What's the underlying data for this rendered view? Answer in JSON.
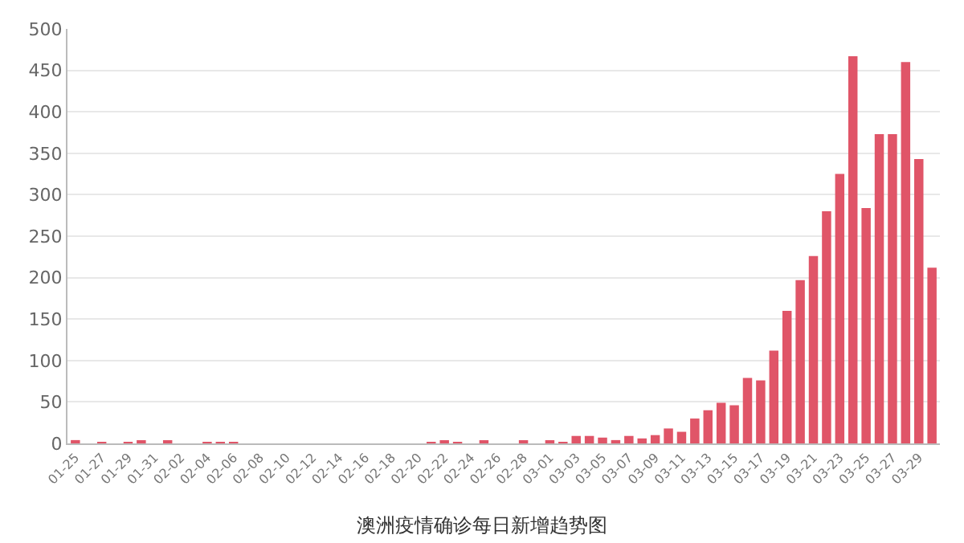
{
  "chart_data": {
    "type": "bar",
    "title": "澳洲疫情确诊每日新增趋势图",
    "categories": [
      "01-25",
      null,
      "01-27",
      null,
      "01-29",
      null,
      "01-31",
      null,
      "02-02",
      null,
      "02-04",
      null,
      "02-06",
      null,
      "02-08",
      null,
      "02-10",
      null,
      "02-12",
      null,
      "02-14",
      null,
      "02-16",
      null,
      "02-18",
      null,
      "02-20",
      null,
      "02-22",
      null,
      "02-24",
      null,
      "02-26",
      null,
      "02-28",
      null,
      "03-01",
      null,
      "03-03",
      null,
      "03-05",
      null,
      "03-07",
      null,
      "03-09",
      null,
      "03-11",
      null,
      "03-13",
      null,
      "03-15",
      null,
      "03-17",
      null,
      "03-19",
      null,
      "03-21",
      null,
      "03-23",
      null,
      "03-25",
      null,
      "03-27",
      null,
      "03-29",
      null
    ],
    "values": [
      4,
      0,
      1,
      0,
      1,
      2,
      0,
      3,
      0,
      0,
      1,
      1,
      1,
      0,
      0,
      0,
      0,
      0,
      0,
      0,
      0,
      0,
      0,
      0,
      0,
      0,
      0,
      1,
      3,
      1,
      0,
      2,
      0,
      0,
      2,
      0,
      2,
      1,
      9,
      9,
      7,
      4,
      9,
      6,
      10,
      18,
      14,
      30,
      40,
      49,
      46,
      79,
      76,
      112,
      160,
      197,
      226,
      280,
      325,
      467,
      284,
      373,
      373,
      460,
      343,
      212
    ],
    "color": "#e05568",
    "ylim": [
      0,
      500
    ],
    "yticks": [
      0,
      50,
      100,
      150,
      200,
      250,
      300,
      350,
      400,
      450,
      500
    ],
    "grid": "y"
  }
}
